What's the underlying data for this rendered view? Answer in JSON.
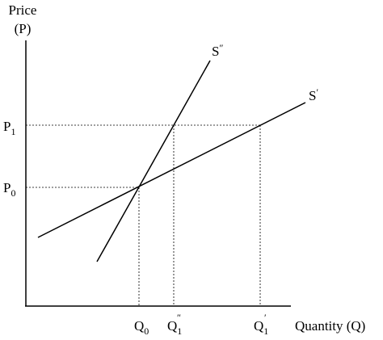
{
  "axes": {
    "y_label": [
      "Price",
      "(P)"
    ],
    "x_label": "Quantity (Q)"
  },
  "curves": [
    {
      "base": "S",
      "sup": "″"
    },
    {
      "base": "S",
      "sup": "′"
    }
  ],
  "price_levels": [
    {
      "base": "P",
      "sub": "1"
    },
    {
      "base": "P",
      "sub": "0"
    }
  ],
  "quantities": [
    {
      "base": "Q",
      "sub": "0"
    },
    {
      "base": "Q",
      "sub": "1",
      "sup": "″"
    },
    {
      "base": "Q",
      "sub": "1",
      "sup": "′"
    }
  ]
}
